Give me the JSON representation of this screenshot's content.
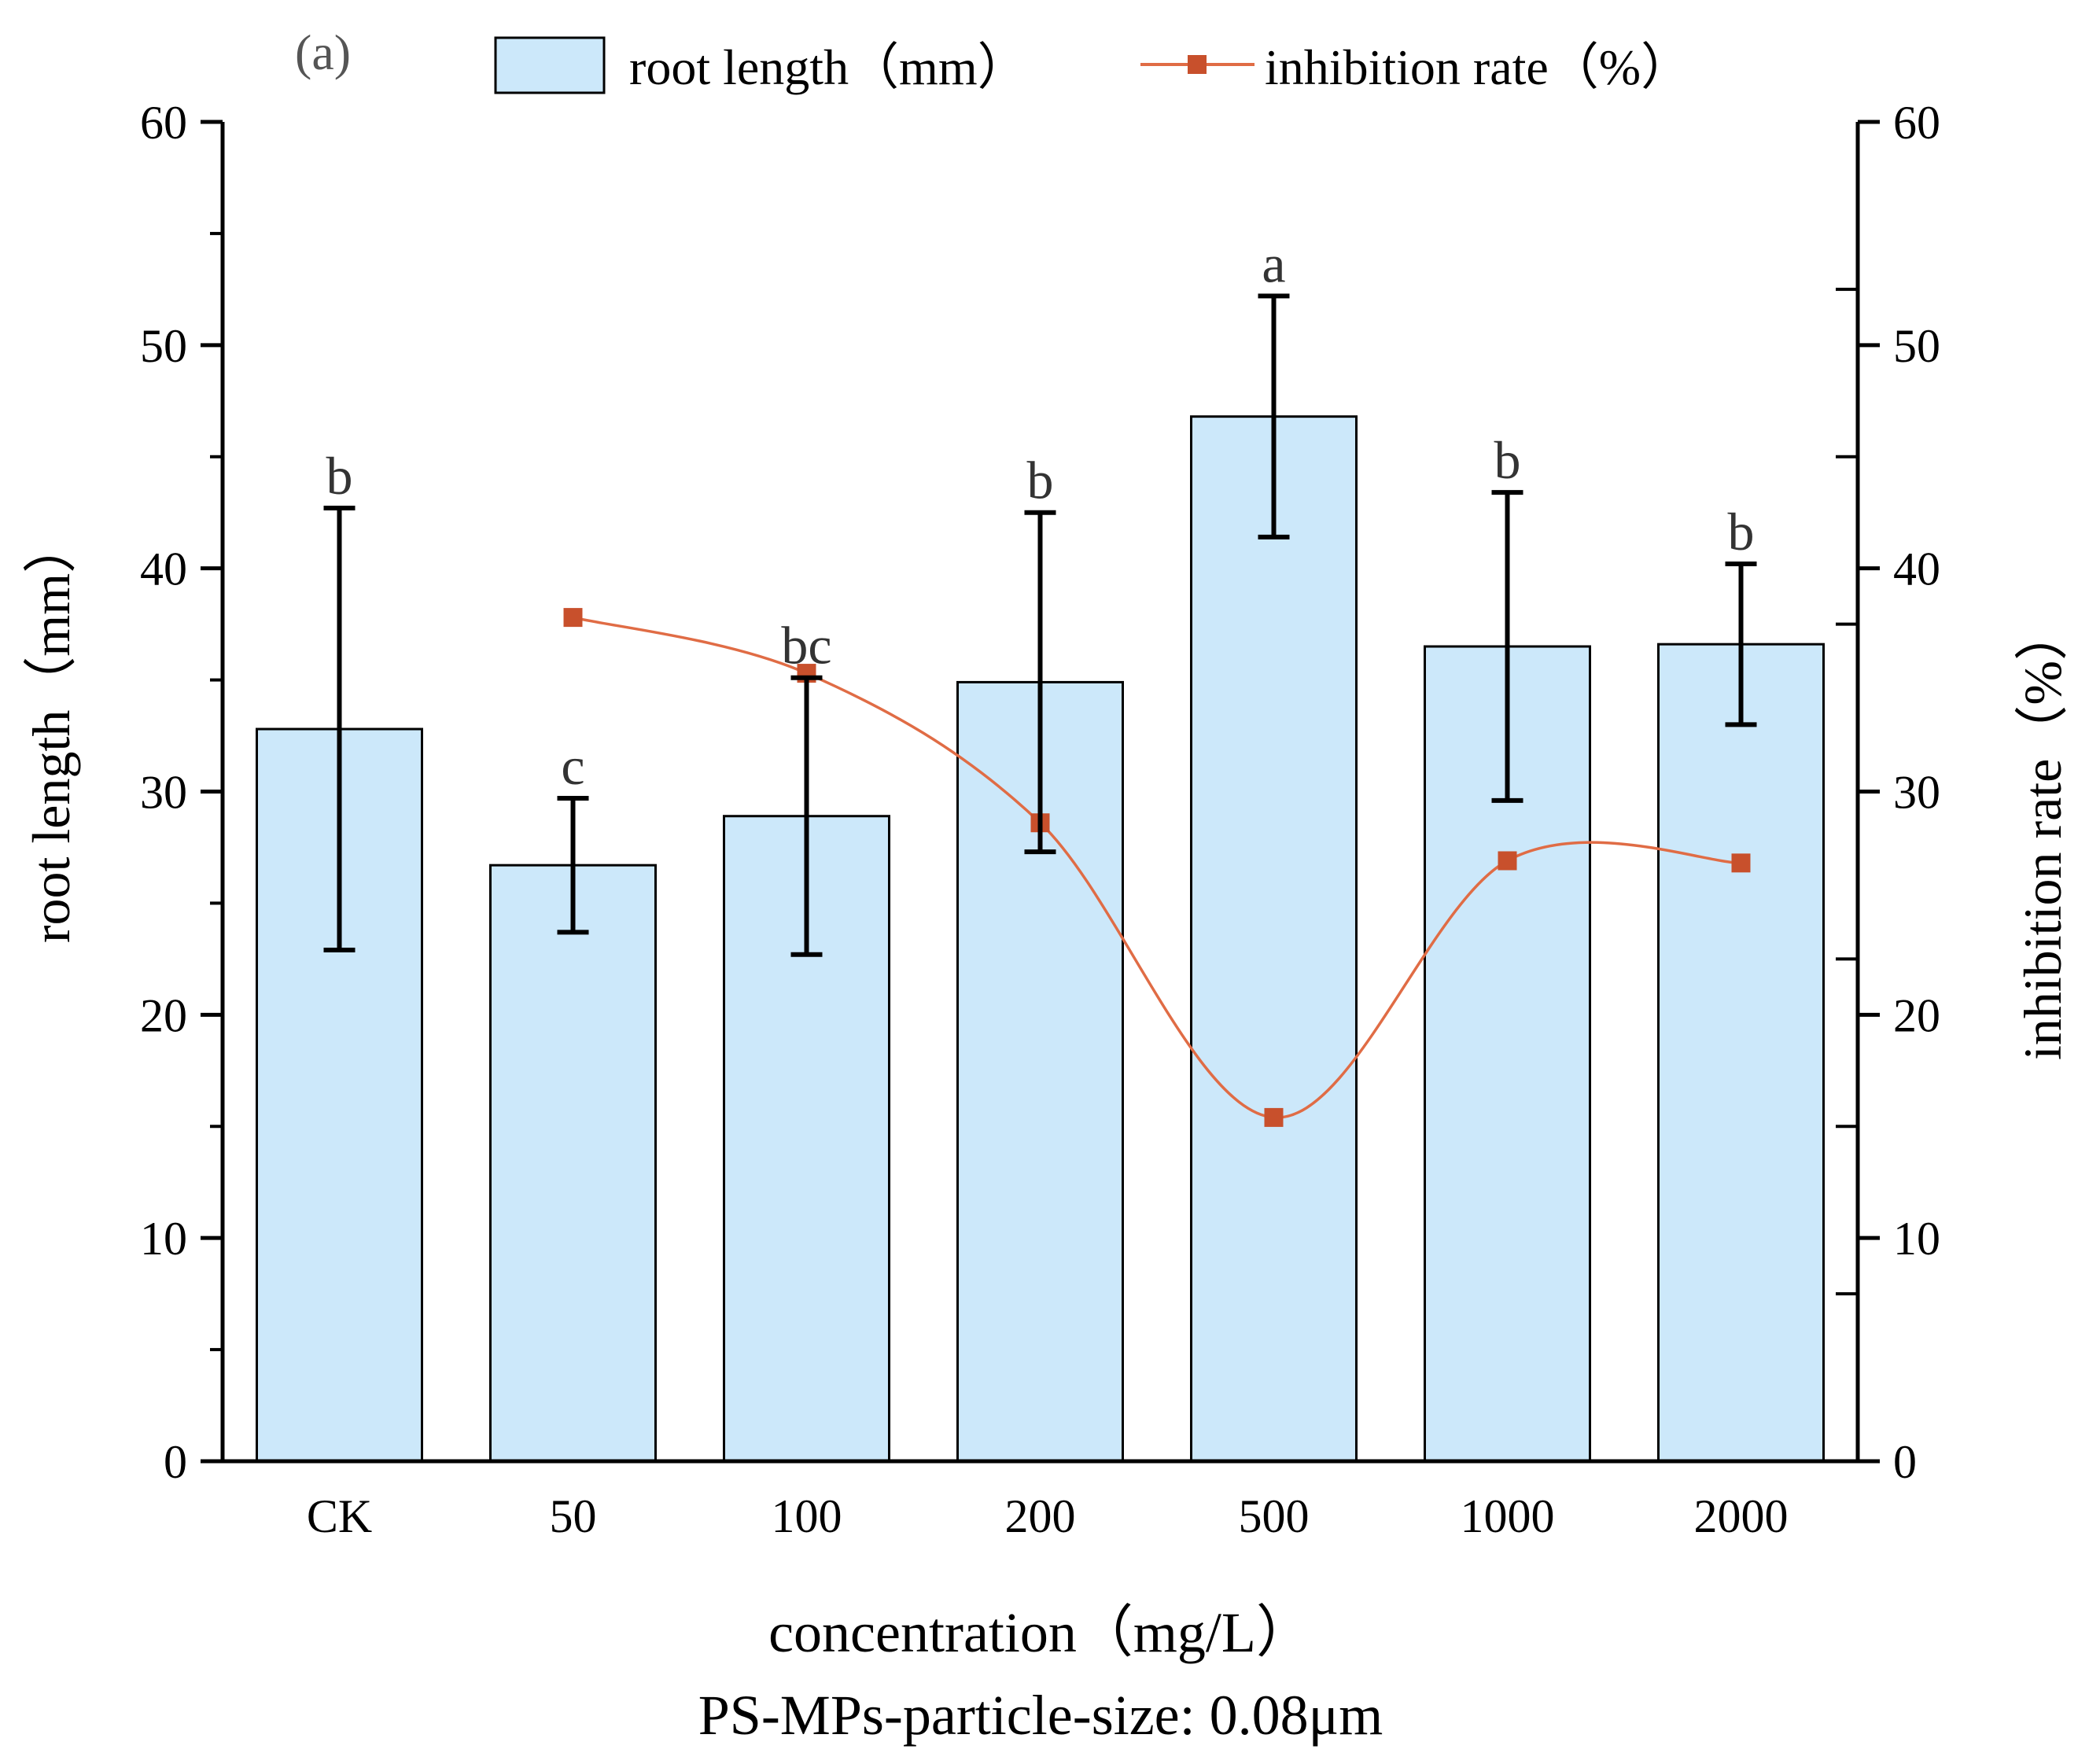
{
  "chart_data": {
    "type": "bar+line",
    "panel_label": "(a)",
    "categories": [
      "CK",
      "50",
      "100",
      "200",
      "500",
      "1000",
      "2000"
    ],
    "series": [
      {
        "name": "root length（mm）",
        "kind": "bar",
        "axis": "left",
        "values": [
          32.8,
          26.7,
          28.9,
          34.9,
          46.8,
          36.5,
          36.6
        ],
        "error": [
          9.9,
          3.0,
          6.2,
          7.6,
          5.4,
          6.9,
          3.6
        ],
        "letters": [
          "b",
          "c",
          "bc",
          "b",
          "a",
          "b",
          "b"
        ]
      },
      {
        "name": "inhibition rate（%）",
        "kind": "line",
        "axis": "right",
        "smooth": true,
        "values": [
          null,
          37.8,
          35.3,
          28.6,
          15.4,
          26.9,
          26.8
        ]
      }
    ],
    "xlabel": "concentration（mg/L）",
    "ylabel_left": "root length（mm）",
    "ylabel_right": "inhibition rate（%）",
    "ylim_left": [
      0,
      60
    ],
    "ylim_right": [
      0,
      60
    ],
    "yticks_left": [
      0,
      10,
      20,
      30,
      40,
      50,
      60
    ],
    "yticks_right": [
      0,
      10,
      20,
      30,
      40,
      50,
      60
    ],
    "subtitle": "PS-MPs-particle-size: 0.08μm",
    "legend_position": "top",
    "colors": {
      "bar_fill": "#cce8fa",
      "bar_stroke": "#000000",
      "line": "#e06c45",
      "marker": "#c8502c",
      "axis": "#000000"
    }
  }
}
